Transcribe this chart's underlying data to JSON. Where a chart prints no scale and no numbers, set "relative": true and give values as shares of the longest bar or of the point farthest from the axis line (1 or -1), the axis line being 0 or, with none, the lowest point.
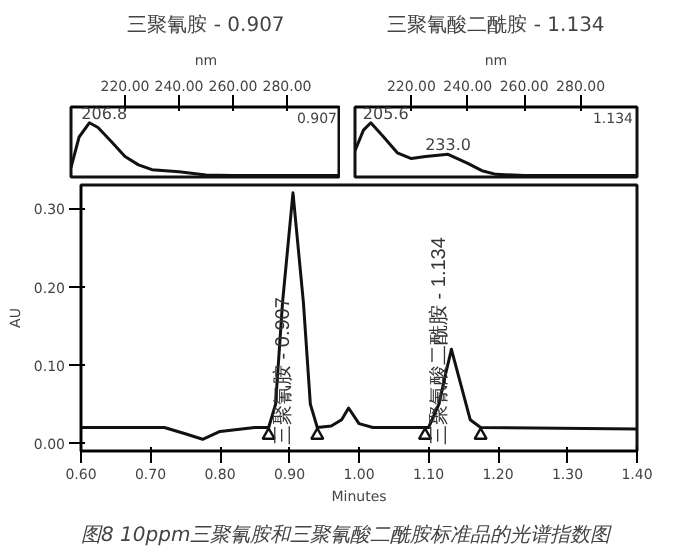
{
  "chart_data": [
    {
      "type": "line",
      "title": "三聚氰胺 - 0.907",
      "xlabel": "nm",
      "relative": true,
      "xlim": [
        200,
        300
      ],
      "xticks": [
        {
          "value": 220,
          "label": "220.00"
        },
        {
          "value": 240,
          "label": "240.00"
        },
        {
          "value": 260,
          "label": "260.00"
        },
        {
          "value": 280,
          "label": "280.00"
        }
      ],
      "x": [
        200,
        203,
        206.8,
        210,
        215,
        220,
        225,
        230,
        240,
        250,
        260,
        300
      ],
      "series": [
        {
          "color": "#111111",
          "values": [
            0.15,
            0.73,
            1,
            0.91,
            0.64,
            0.36,
            0.2,
            0.11,
            0.07,
            0.01,
            0,
            0
          ]
        }
      ],
      "grid": false,
      "annotations": [
        {
          "text": "206.8",
          "x": 206.8,
          "y": 1
        },
        "0.907"
      ]
    },
    {
      "type": "line",
      "title": "三聚氰酸二酰胺 - 1.134",
      "xlabel": "nm",
      "relative": true,
      "xlim": [
        200,
        300
      ],
      "xticks": [
        {
          "value": 220,
          "label": "220.00"
        },
        {
          "value": 240,
          "label": "240.00"
        },
        {
          "value": 260,
          "label": "260.00"
        },
        {
          "value": 280,
          "label": "280.00"
        }
      ],
      "x": [
        200,
        203,
        205.6,
        210,
        215,
        220,
        225,
        233,
        240,
        245,
        250,
        260,
        300
      ],
      "series": [
        {
          "color": "#111111",
          "values": [
            0.47,
            0.86,
            1,
            0.74,
            0.43,
            0.32,
            0.36,
            0.4,
            0.23,
            0.09,
            0.02,
            0,
            0
          ]
        }
      ],
      "grid": false,
      "annotations": [
        {
          "text": "205.6",
          "x": 205.6,
          "y": 1
        },
        {
          "text": "233.0",
          "x": 233,
          "y": 0.4
        },
        "1.134"
      ]
    },
    {
      "type": "line",
      "xlabel": "Minutes",
      "ylabel": "AU",
      "xlim": [
        0.6,
        1.4
      ],
      "ylim": [
        -0.01,
        0.33
      ],
      "xticks": [
        {
          "value": 0.6,
          "label": "0.60"
        },
        {
          "value": 0.7,
          "label": "0.70"
        },
        {
          "value": 0.8,
          "label": "0.80"
        },
        {
          "value": 0.9,
          "label": "0.90"
        },
        {
          "value": 1.0,
          "label": "1.00"
        },
        {
          "value": 1.1,
          "label": "1.10"
        },
        {
          "value": 1.2,
          "label": "1.20"
        },
        {
          "value": 1.3,
          "label": "1.30"
        },
        {
          "value": 1.4,
          "label": "1.40"
        }
      ],
      "yticks": [
        {
          "value": 0,
          "label": "0.00"
        },
        {
          "value": 0.1,
          "label": "0.10"
        },
        {
          "value": 0.2,
          "label": "0.20"
        },
        {
          "value": 0.3,
          "label": "0.30"
        }
      ],
      "grid": false,
      "series": [
        {
          "color": "#111111",
          "x": [
            0.6,
            0.72,
            0.75,
            0.775,
            0.8,
            0.85,
            0.87,
            0.88,
            0.89,
            0.905,
            0.92,
            0.93,
            0.94,
            0.96,
            0.975,
            0.985,
            1.0,
            1.02,
            1.1,
            1.115,
            1.125,
            1.133,
            1.145,
            1.16,
            1.175,
            1.4
          ],
          "values": [
            0.02,
            0.02,
            0.012,
            0.005,
            0.015,
            0.02,
            0.02,
            0.05,
            0.18,
            0.32,
            0.18,
            0.05,
            0.02,
            0.022,
            0.03,
            0.045,
            0.025,
            0.02,
            0.02,
            0.05,
            0.09,
            0.12,
            0.08,
            0.03,
            0.02,
            0.018
          ]
        },
        {
          "type": "scatter",
          "marker": "triangle",
          "color": "#111111",
          "x": [
            0.87,
            0.94,
            1.095,
            1.175
          ],
          "values": [
            0.01,
            0.01,
            0.01,
            0.01
          ]
        }
      ],
      "annotations": [
        "三聚氰胺 - 0.907",
        "三聚氰酸二酰胺 - 1.134",
        "图8  10ppm三聚氰胺和三聚氰酸二酰胺标准品的光谱指数图"
      ]
    }
  ]
}
